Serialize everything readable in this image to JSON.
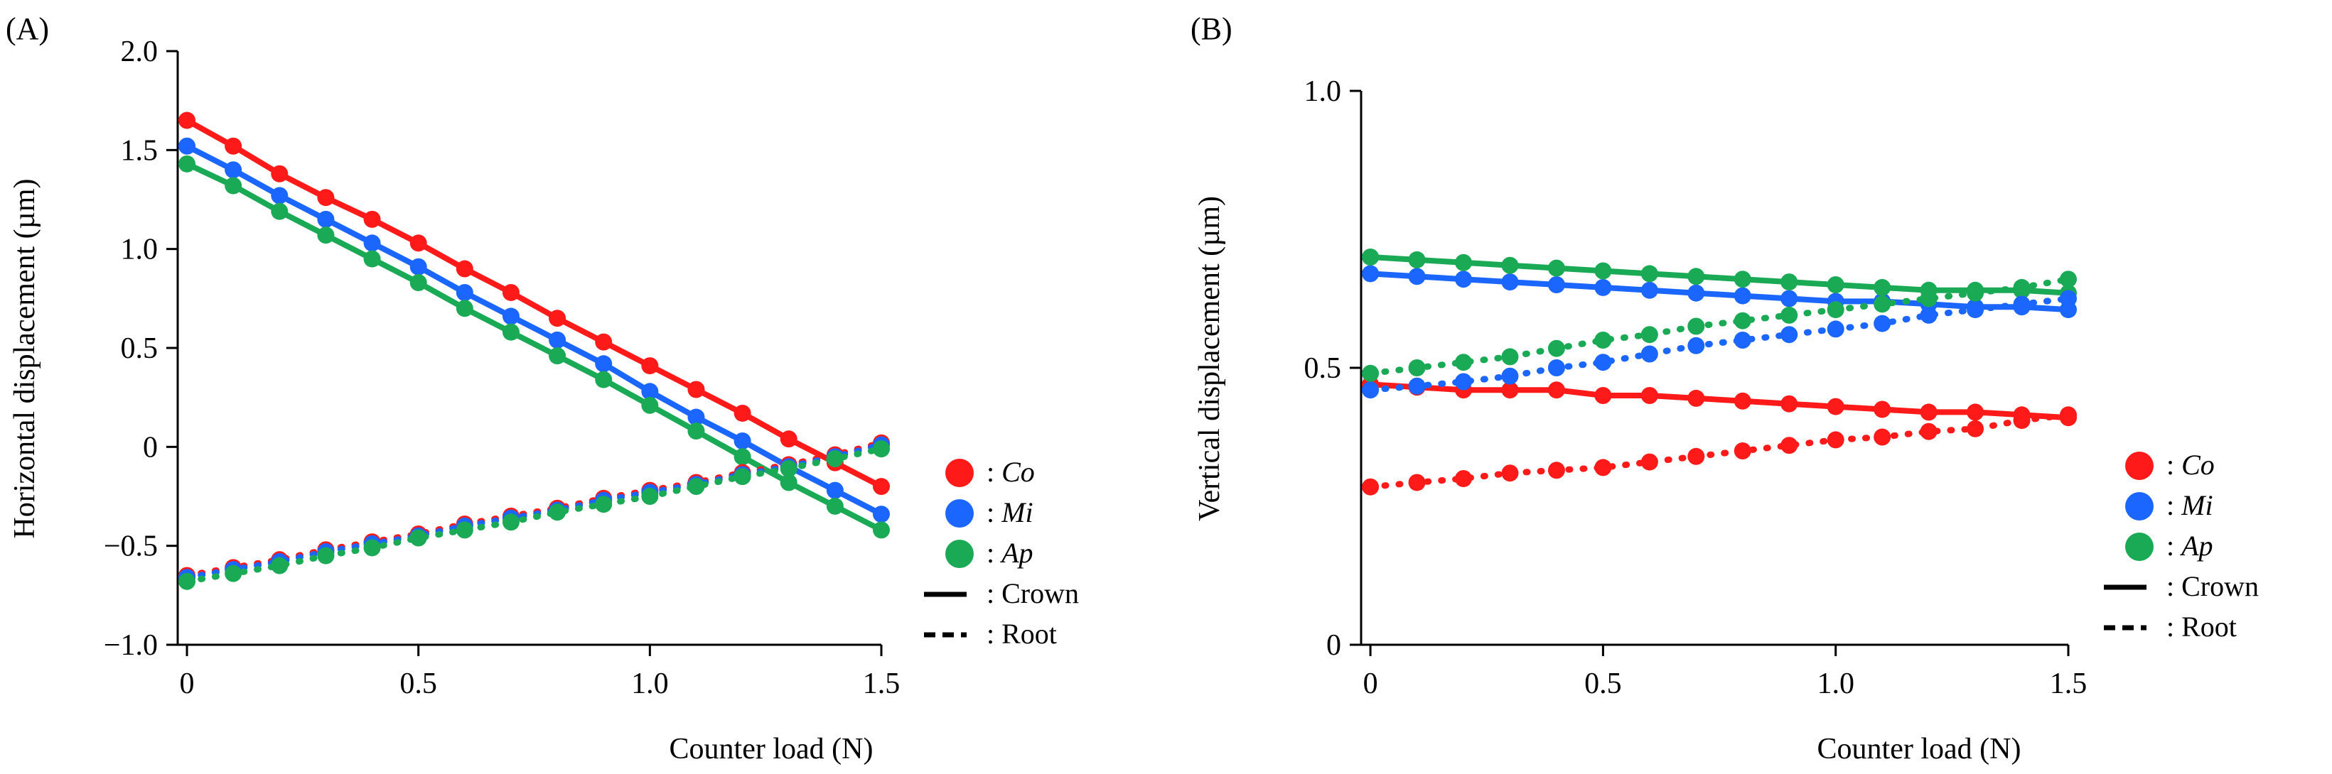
{
  "panels": [
    {
      "id": "A",
      "panel_label": "(A)",
      "xlabel": "Counter load (N)",
      "ylabel": "Horizontal displacement (µm)",
      "x_ticks": [
        "0",
        "0.5",
        "1.0",
        "1.5"
      ],
      "y_ticks": [
        "−1.0",
        "−0.5",
        "0",
        "0.5",
        "1.0",
        "1.5",
        "2.0"
      ],
      "legend": [
        {
          "key": "Co",
          "label": ": Co",
          "italic": true,
          "color": "#ff1a1a",
          "symbol": "dot"
        },
        {
          "key": "Mi",
          "label": ": Mi",
          "italic": true,
          "color": "#1a66ff",
          "symbol": "dot"
        },
        {
          "key": "Ap",
          "label": ": Ap",
          "italic": true,
          "color": "#1aaa55",
          "symbol": "dot"
        },
        {
          "key": "Crown",
          "label": ": Crown",
          "italic": false,
          "color": "#000000",
          "symbol": "solid"
        },
        {
          "key": "Root",
          "label": ": Root",
          "italic": false,
          "color": "#000000",
          "symbol": "dashed"
        }
      ]
    },
    {
      "id": "B",
      "panel_label": "(B)",
      "xlabel": "Counter load (N)",
      "ylabel": "Vertical displacement (µm)",
      "x_ticks": [
        "0",
        "0.5",
        "1.0",
        "1.5"
      ],
      "y_ticks": [
        "0",
        "0.5",
        "1.0"
      ],
      "legend": [
        {
          "key": "Co",
          "label": ": Co",
          "italic": true,
          "color": "#ff1a1a",
          "symbol": "dot"
        },
        {
          "key": "Mi",
          "label": ": Mi",
          "italic": true,
          "color": "#1a66ff",
          "symbol": "dot"
        },
        {
          "key": "Ap",
          "label": ": Ap",
          "italic": true,
          "color": "#1aaa55",
          "symbol": "dot"
        },
        {
          "key": "Crown",
          "label": ": Crown",
          "italic": false,
          "color": "#000000",
          "symbol": "solid"
        },
        {
          "key": "Root",
          "label": ": Root",
          "italic": false,
          "color": "#000000",
          "symbol": "dashed"
        }
      ]
    }
  ],
  "chart_data": [
    {
      "type": "line",
      "title": "(A)",
      "xlabel": "Counter load (N)",
      "ylabel": "Horizontal displacement (µm)",
      "xlim": [
        -0.02,
        1.5
      ],
      "ylim": [
        -1.0,
        2.0
      ],
      "x": [
        0,
        0.1,
        0.2,
        0.3,
        0.4,
        0.5,
        0.6,
        0.7,
        0.8,
        0.9,
        1.0,
        1.1,
        1.2,
        1.3,
        1.4,
        1.5
      ],
      "series": [
        {
          "name": "Co Crown",
          "color": "#ff1a1a",
          "style": "solid",
          "values": [
            1.65,
            1.52,
            1.38,
            1.26,
            1.15,
            1.03,
            0.9,
            0.78,
            0.65,
            0.53,
            0.41,
            0.29,
            0.17,
            0.04,
            -0.08,
            -0.2
          ]
        },
        {
          "name": "Mi Crown",
          "color": "#1a66ff",
          "style": "solid",
          "values": [
            1.52,
            1.4,
            1.27,
            1.15,
            1.03,
            0.91,
            0.78,
            0.66,
            0.54,
            0.42,
            0.28,
            0.15,
            0.03,
            -0.1,
            -0.22,
            -0.34
          ]
        },
        {
          "name": "Ap Crown",
          "color": "#1aaa55",
          "style": "solid",
          "values": [
            1.43,
            1.32,
            1.19,
            1.07,
            0.95,
            0.83,
            0.7,
            0.58,
            0.46,
            0.34,
            0.21,
            0.08,
            -0.05,
            -0.18,
            -0.3,
            -0.42
          ]
        },
        {
          "name": "Co Root",
          "color": "#ff1a1a",
          "style": "dashed",
          "values": [
            -0.65,
            -0.61,
            -0.57,
            -0.52,
            -0.48,
            -0.44,
            -0.39,
            -0.35,
            -0.31,
            -0.26,
            -0.22,
            -0.18,
            -0.13,
            -0.09,
            -0.04,
            0.02
          ]
        },
        {
          "name": "Mi Root",
          "color": "#1a66ff",
          "style": "dashed",
          "values": [
            -0.66,
            -0.62,
            -0.58,
            -0.53,
            -0.49,
            -0.45,
            -0.4,
            -0.36,
            -0.32,
            -0.27,
            -0.23,
            -0.19,
            -0.14,
            -0.1,
            -0.05,
            0.01
          ]
        },
        {
          "name": "Ap Root",
          "color": "#1aaa55",
          "style": "dashed",
          "values": [
            -0.68,
            -0.64,
            -0.6,
            -0.55,
            -0.51,
            -0.46,
            -0.42,
            -0.38,
            -0.33,
            -0.29,
            -0.25,
            -0.2,
            -0.15,
            -0.11,
            -0.06,
            -0.01
          ]
        }
      ]
    },
    {
      "type": "line",
      "title": "(B)",
      "xlabel": "Counter load (N)",
      "ylabel": "Vertical displacement (µm)",
      "xlim": [
        -0.02,
        1.5
      ],
      "ylim": [
        0,
        1.0
      ],
      "x": [
        0,
        0.1,
        0.2,
        0.3,
        0.4,
        0.5,
        0.6,
        0.7,
        0.8,
        0.9,
        1.0,
        1.1,
        1.2,
        1.3,
        1.4,
        1.5
      ],
      "series": [
        {
          "name": "Co Crown",
          "color": "#ff1a1a",
          "style": "solid",
          "values": [
            0.47,
            0.465,
            0.46,
            0.46,
            0.46,
            0.45,
            0.45,
            0.445,
            0.44,
            0.435,
            0.43,
            0.425,
            0.42,
            0.42,
            0.415,
            0.41
          ]
        },
        {
          "name": "Mi Crown",
          "color": "#1a66ff",
          "style": "solid",
          "values": [
            0.67,
            0.665,
            0.66,
            0.655,
            0.65,
            0.645,
            0.64,
            0.635,
            0.63,
            0.625,
            0.62,
            0.62,
            0.615,
            0.61,
            0.61,
            0.605
          ]
        },
        {
          "name": "Ap Crown",
          "color": "#1aaa55",
          "style": "solid",
          "values": [
            0.7,
            0.695,
            0.69,
            0.685,
            0.68,
            0.675,
            0.67,
            0.665,
            0.66,
            0.655,
            0.65,
            0.645,
            0.64,
            0.64,
            0.64,
            0.635
          ]
        },
        {
          "name": "Co Root",
          "color": "#ff1a1a",
          "style": "dashed",
          "values": [
            0.285,
            0.293,
            0.3,
            0.31,
            0.315,
            0.32,
            0.33,
            0.34,
            0.35,
            0.36,
            0.37,
            0.375,
            0.385,
            0.39,
            0.405,
            0.415
          ]
        },
        {
          "name": "Mi Root",
          "color": "#1a66ff",
          "style": "dashed",
          "values": [
            0.46,
            0.467,
            0.475,
            0.485,
            0.5,
            0.51,
            0.525,
            0.54,
            0.55,
            0.56,
            0.57,
            0.58,
            0.595,
            0.605,
            0.615,
            0.625
          ]
        },
        {
          "name": "Ap Root",
          "color": "#1aaa55",
          "style": "dashed",
          "values": [
            0.49,
            0.5,
            0.51,
            0.52,
            0.535,
            0.55,
            0.56,
            0.575,
            0.585,
            0.595,
            0.605,
            0.615,
            0.625,
            0.635,
            0.645,
            0.66
          ]
        }
      ]
    }
  ]
}
